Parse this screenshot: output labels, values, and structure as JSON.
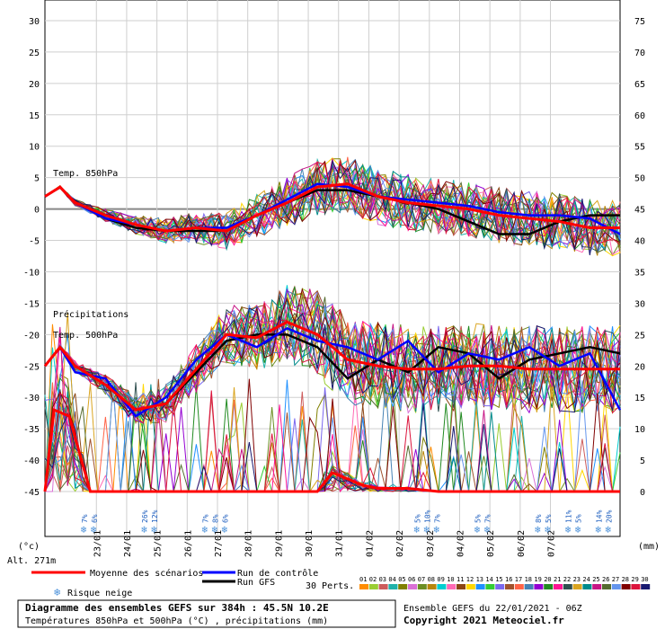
{
  "chart_data": {
    "type": "line",
    "left_ticks": [
      "30",
      "25",
      "20",
      "15",
      "10",
      "5",
      "0",
      "-5",
      "-10",
      "-15",
      "-20",
      "-25",
      "-30",
      "-35",
      "-40",
      "-45"
    ],
    "right_ticks": [
      "75",
      "70",
      "65",
      "60",
      "55",
      "50",
      "45",
      "40",
      "35",
      "30",
      "25",
      "20",
      "15",
      "10",
      "5",
      "0"
    ],
    "left_unit": "(°c)",
    "right_unit": "(mm)",
    "altitude": "Alt. 271m",
    "date_labels": [
      "23/01",
      "24/01",
      "25/01",
      "26/01",
      "27/01",
      "28/01",
      "29/01",
      "30/01",
      "31/01",
      "01/02",
      "02/02",
      "03/02",
      "04/02",
      "05/02",
      "06/02",
      "07/02"
    ],
    "annotations": {
      "t850": "Temp. 850hPa",
      "precip": "Précipitations",
      "t500": "Temp. 500hPa"
    },
    "snow_risk": [
      {
        "day": 1.3,
        "pcts": [
          "7%",
          "6%"
        ]
      },
      {
        "day": 3.3,
        "pcts": [
          "26%",
          "12%"
        ]
      },
      {
        "day": 5.3,
        "pcts": [
          "7%",
          "8%",
          "6%"
        ]
      },
      {
        "day": 12.3,
        "pcts": [
          "5%",
          "10%",
          "7%"
        ]
      },
      {
        "day": 14.3,
        "pcts": [
          "5%",
          "7%"
        ]
      },
      {
        "day": 16.3,
        "pcts": [
          "8%",
          "5%"
        ]
      },
      {
        "day": 17.3,
        "pcts": [
          "11%",
          "5%"
        ]
      },
      {
        "day": 18.3,
        "pcts": [
          "14%",
          "20%"
        ]
      }
    ],
    "series": [
      {
        "name": "Moyenne des scénarios",
        "color": "#ff0000"
      },
      {
        "name": "Run de contrôle",
        "color": "#0000ff"
      },
      {
        "name": "Run GFS",
        "color": "#000000"
      }
    ],
    "mean_t850": [
      [
        0,
        2
      ],
      [
        0.5,
        3.5
      ],
      [
        1,
        1
      ],
      [
        2,
        -1
      ],
      [
        3,
        -2.5
      ],
      [
        4,
        -3.5
      ],
      [
        5,
        -3
      ],
      [
        6,
        -3.5
      ],
      [
        7,
        -1
      ],
      [
        8,
        1
      ],
      [
        9,
        3.5
      ],
      [
        10,
        4
      ],
      [
        11,
        2
      ],
      [
        12,
        1
      ],
      [
        13,
        0.5
      ],
      [
        14,
        0
      ],
      [
        15,
        -1
      ],
      [
        16,
        -1.5
      ],
      [
        17,
        -2
      ],
      [
        18,
        -3
      ],
      [
        19,
        -3
      ]
    ],
    "mean_t500": [
      [
        0,
        -25
      ],
      [
        0.5,
        -22
      ],
      [
        1,
        -25
      ],
      [
        2,
        -28
      ],
      [
        3,
        -32
      ],
      [
        4,
        -31
      ],
      [
        5,
        -25.5
      ],
      [
        6,
        -20
      ],
      [
        7,
        -20.5
      ],
      [
        8,
        -18
      ],
      [
        9,
        -20
      ],
      [
        10,
        -24
      ],
      [
        11,
        -25
      ],
      [
        12,
        -25.5
      ],
      [
        13,
        -25.5
      ],
      [
        14,
        -25
      ],
      [
        15,
        -25
      ],
      [
        16,
        -25.5
      ],
      [
        17,
        -25.5
      ],
      [
        18,
        -25.5
      ],
      [
        19,
        -25.5
      ]
    ],
    "mean_precip_mm": [
      [
        0,
        0
      ],
      [
        0.3,
        13
      ],
      [
        0.8,
        12
      ],
      [
        1.5,
        0
      ],
      [
        2,
        0
      ],
      [
        9,
        0
      ],
      [
        9.5,
        3
      ],
      [
        10,
        2
      ],
      [
        10.5,
        1
      ],
      [
        11,
        0.5
      ],
      [
        12,
        0.5
      ],
      [
        13,
        0
      ],
      [
        14,
        0
      ],
      [
        19,
        0
      ]
    ],
    "control_t850": [
      [
        0,
        2
      ],
      [
        0.5,
        3.5
      ],
      [
        1,
        1
      ],
      [
        2,
        -1.5
      ],
      [
        3,
        -2.5
      ],
      [
        4,
        -3.5
      ],
      [
        5,
        -3
      ],
      [
        6,
        -3
      ],
      [
        7,
        -1
      ],
      [
        8,
        1.5
      ],
      [
        9,
        4
      ],
      [
        10,
        3.5
      ],
      [
        11,
        2
      ],
      [
        12,
        1.5
      ],
      [
        13,
        1
      ],
      [
        14,
        0.5
      ],
      [
        15,
        -0.5
      ],
      [
        16,
        -1
      ],
      [
        17,
        -1
      ],
      [
        18,
        -1.5
      ],
      [
        19,
        -4
      ]
    ],
    "control_t500": [
      [
        0,
        -25
      ],
      [
        0.5,
        -22
      ],
      [
        1,
        -26
      ],
      [
        2,
        -27
      ],
      [
        3,
        -33
      ],
      [
        4,
        -30
      ],
      [
        5,
        -24
      ],
      [
        6,
        -20
      ],
      [
        7,
        -22
      ],
      [
        8,
        -19
      ],
      [
        9,
        -21
      ],
      [
        10,
        -22
      ],
      [
        11,
        -24
      ],
      [
        12,
        -21
      ],
      [
        13,
        -26
      ],
      [
        14,
        -23
      ],
      [
        15,
        -24
      ],
      [
        16,
        -22
      ],
      [
        17,
        -25
      ],
      [
        18,
        -23
      ],
      [
        19,
        -32
      ]
    ],
    "gfs_t850": [
      [
        0,
        2
      ],
      [
        0.5,
        3.5
      ],
      [
        1,
        1
      ],
      [
        2,
        -1.5
      ],
      [
        3,
        -3
      ],
      [
        4,
        -3.5
      ],
      [
        5,
        -3.5
      ],
      [
        6,
        -3.5
      ],
      [
        7,
        -1
      ],
      [
        8,
        1
      ],
      [
        9,
        3
      ],
      [
        10,
        3
      ],
      [
        11,
        2
      ],
      [
        12,
        1
      ],
      [
        13,
        0
      ],
      [
        14,
        -2
      ],
      [
        15,
        -4
      ],
      [
        16,
        -4
      ],
      [
        17,
        -2
      ],
      [
        18,
        -1
      ],
      [
        19,
        -1
      ]
    ],
    "gfs_t500": [
      [
        0,
        -25
      ],
      [
        0.5,
        -22
      ],
      [
        1,
        -25
      ],
      [
        2,
        -28
      ],
      [
        3,
        -32
      ],
      [
        4,
        -31
      ],
      [
        5,
        -26
      ],
      [
        6,
        -21
      ],
      [
        7,
        -20
      ],
      [
        8,
        -20
      ],
      [
        9,
        -22
      ],
      [
        10,
        -27
      ],
      [
        11,
        -24
      ],
      [
        12,
        -26
      ],
      [
        13,
        -22
      ],
      [
        14,
        -23
      ],
      [
        15,
        -27
      ],
      [
        16,
        -24
      ],
      [
        17,
        -23
      ],
      [
        18,
        -22
      ],
      [
        19,
        -23
      ]
    ],
    "xlim": [
      0,
      19
    ],
    "ylim_left": [
      -45,
      30
    ],
    "ylim_right": [
      0,
      75
    ],
    "perts_label": "30 Perts.",
    "pert_numbers": [
      "01",
      "02",
      "03",
      "04",
      "05",
      "06",
      "07",
      "08",
      "09",
      "10",
      "11",
      "12",
      "13",
      "14",
      "15",
      "16",
      "17",
      "18",
      "19",
      "20",
      "21",
      "22",
      "23",
      "24",
      "25",
      "26",
      "27",
      "28",
      "29",
      "30"
    ],
    "pert_colors": [
      "#ff8c00",
      "#9acd32",
      "#cd5c5c",
      "#20b2aa",
      "#808000",
      "#da70d6",
      "#6b8e23",
      "#b8860b",
      "#00ced1",
      "#ff69b4",
      "#8b4513",
      "#ffd700",
      "#1e90ff",
      "#32cd32",
      "#7b68ee",
      "#a0522d",
      "#ff6347",
      "#4682b4",
      "#9400d3",
      "#228b22",
      "#ff1493",
      "#2f4f4f",
      "#daa520",
      "#008b8b",
      "#c71585",
      "#556b2f",
      "#6495ed",
      "#800000",
      "#dc143c",
      "#191970"
    ]
  },
  "footer": {
    "title": "Diagramme des ensembles GEFS sur 384h : 45.5N 10.2E",
    "subtitle": "Températures 850hPa et 500hPa (°C) , précipitations (mm)",
    "ensemble": "Ensemble GEFS du 22/01/2021 - 06Z",
    "copyright": "Copyright 2021 Meteociel.fr",
    "snow_label": "Risque neige"
  }
}
